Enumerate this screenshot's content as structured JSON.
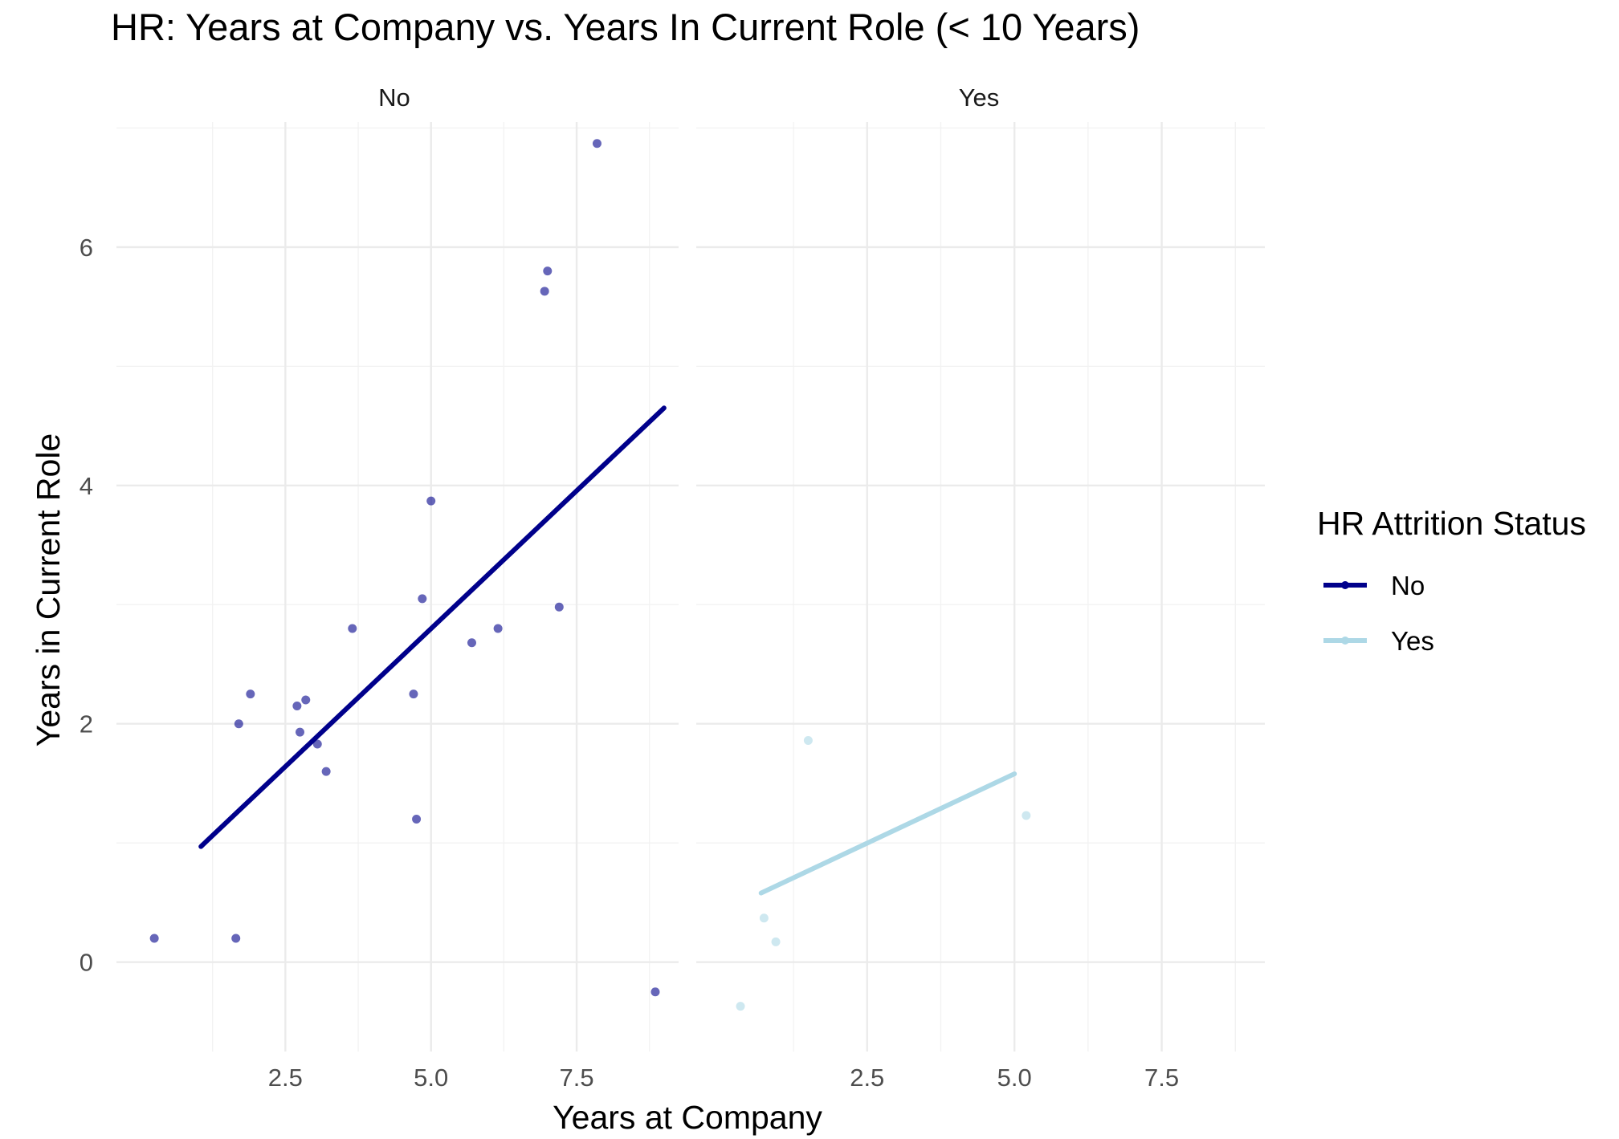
{
  "chart_data": {
    "type": "scatter",
    "title": "HR: Years at Company vs. Years In Current Role (< 10 Years)",
    "xlabel": "Years at Company",
    "ylabel": "Years in Current Role",
    "facets": [
      "No",
      "Yes"
    ],
    "x_ticks": [
      "2.5",
      "5.0",
      "7.5"
    ],
    "y_ticks": [
      "0",
      "2",
      "4",
      "6"
    ],
    "xlim": [
      -0.4,
      9.25
    ],
    "ylim": [
      -0.75,
      7.05
    ],
    "grid": true,
    "legend": {
      "title": "HR Attrition Status",
      "position": "right",
      "entries": [
        {
          "label": "No",
          "color": "#00008b"
        },
        {
          "label": "Yes",
          "color": "#add8e6"
        }
      ]
    },
    "series": [
      {
        "name": "No",
        "facet": "No",
        "color": "#00008b",
        "points": [
          [
            0.25,
            0.2
          ],
          [
            1.65,
            0.2
          ],
          [
            1.7,
            2.0
          ],
          [
            1.9,
            2.25
          ],
          [
            2.7,
            2.15
          ],
          [
            2.75,
            1.93
          ],
          [
            2.85,
            2.2
          ],
          [
            3.05,
            1.83
          ],
          [
            3.2,
            1.6
          ],
          [
            3.65,
            2.8
          ],
          [
            4.7,
            2.25
          ],
          [
            4.75,
            1.2
          ],
          [
            4.85,
            3.05
          ],
          [
            5.0,
            3.87
          ],
          [
            5.7,
            2.68
          ],
          [
            6.15,
            2.8
          ],
          [
            6.95,
            5.63
          ],
          [
            7.0,
            5.8
          ],
          [
            7.2,
            2.98
          ],
          [
            7.85,
            6.87
          ],
          [
            8.85,
            -0.25
          ]
        ],
        "trend": [
          [
            1.05,
            0.97
          ],
          [
            9.0,
            4.65
          ]
        ]
      },
      {
        "name": "Yes",
        "facet": "Yes",
        "color": "#add8e6",
        "points": [
          [
            0.35,
            -0.37
          ],
          [
            0.75,
            0.37
          ],
          [
            0.95,
            0.17
          ],
          [
            1.5,
            1.86
          ],
          [
            5.2,
            1.23
          ]
        ],
        "trend": [
          [
            0.7,
            0.58
          ],
          [
            5.0,
            1.58
          ]
        ]
      }
    ]
  }
}
